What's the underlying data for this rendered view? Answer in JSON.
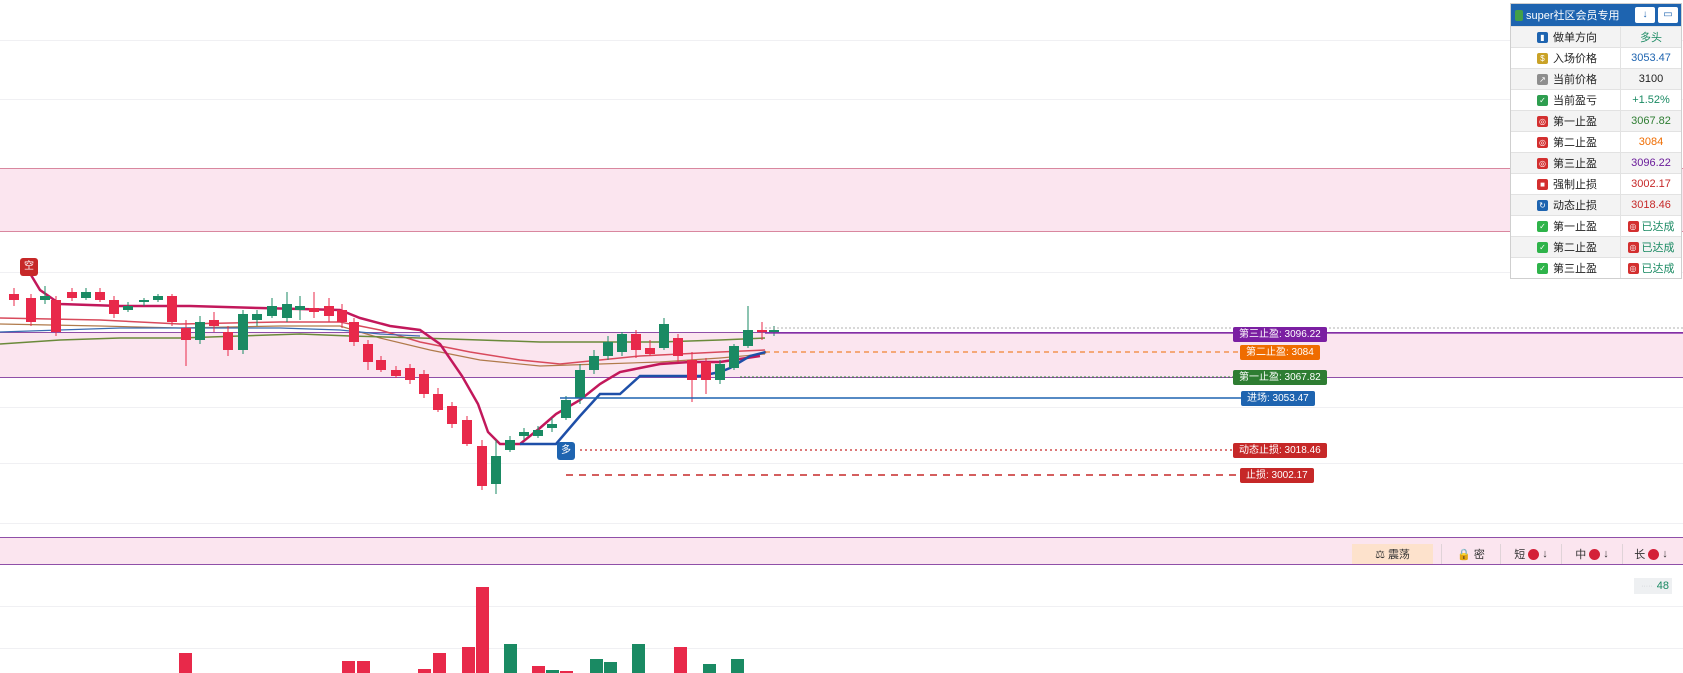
{
  "info_panel": {
    "title": "super社区会员专用",
    "btn_down": "↓",
    "btn_window": "▭",
    "rows": [
      {
        "label": "做单方向",
        "value": "多头",
        "icon": "bar-chart-icon",
        "value_color": "#1a8a63"
      },
      {
        "label": "入场价格",
        "value": "3053.47",
        "icon": "money-bag-icon",
        "value_color": "#1e64b0"
      },
      {
        "label": "当前价格",
        "value": "3100",
        "icon": "trend-chart-icon",
        "value_color": "#222222"
      },
      {
        "label": "当前盈亏",
        "value": "+1.52%",
        "icon": "profit-check-icon",
        "value_color": "#1a8a63"
      },
      {
        "label": "第一止盈",
        "value": "3067.82",
        "icon": "target-icon",
        "value_color": "#2e7d32"
      },
      {
        "label": "第二止盈",
        "value": "3084",
        "icon": "target-icon",
        "value_color": "#ef6c00"
      },
      {
        "label": "第三止盈",
        "value": "3096.22",
        "icon": "target-icon",
        "value_color": "#6a1b9a"
      },
      {
        "label": "强制止损",
        "value": "3002.17",
        "icon": "stop-sign-icon",
        "value_color": "#c62828"
      },
      {
        "label": "动态止损",
        "value": "3018.46",
        "icon": "refresh-icon",
        "value_color": "#c62828"
      },
      {
        "label": "第一止盈",
        "value": "已达成",
        "icon": "check-icon",
        "value_color": "#1a8a63",
        "value_icon": "target-icon"
      },
      {
        "label": "第二止盈",
        "value": "已达成",
        "icon": "check-icon",
        "value_color": "#1a8a63",
        "value_icon": "target-icon"
      },
      {
        "label": "第三止盈",
        "value": "已达成",
        "icon": "check-icon",
        "value_color": "#1a8a63",
        "value_icon": "target-icon"
      }
    ]
  },
  "price_tags": {
    "tp3": {
      "text": "第三止盈: 3096.22",
      "color": "#7b1fa2"
    },
    "tp2": {
      "text": "第二止盈: 3084",
      "color": "#ef6c00"
    },
    "tp1": {
      "text": "第一止盈: 3067.82",
      "color": "#2e7d32"
    },
    "entry": {
      "text": "进场: 3053.47",
      "color": "#1e64b0"
    },
    "dynamic_stop": {
      "text": "动态止损: 3018.46",
      "color": "#c62828"
    },
    "stop": {
      "text": "止损: 3002.17",
      "color": "#c62828"
    }
  },
  "markers": {
    "short": "空",
    "long": "多"
  },
  "toolbar": {
    "range": "震荡",
    "lock": "密",
    "short": "短",
    "mid": "中",
    "long": "长",
    "arrow": "↓"
  },
  "volume_badge": {
    "label": "·····",
    "value": "48"
  },
  "colors": {
    "up": "#1a8a63",
    "down": "#e8294a",
    "trail_red": "#c2185b",
    "trail_blue": "#1e4fa8"
  }
}
